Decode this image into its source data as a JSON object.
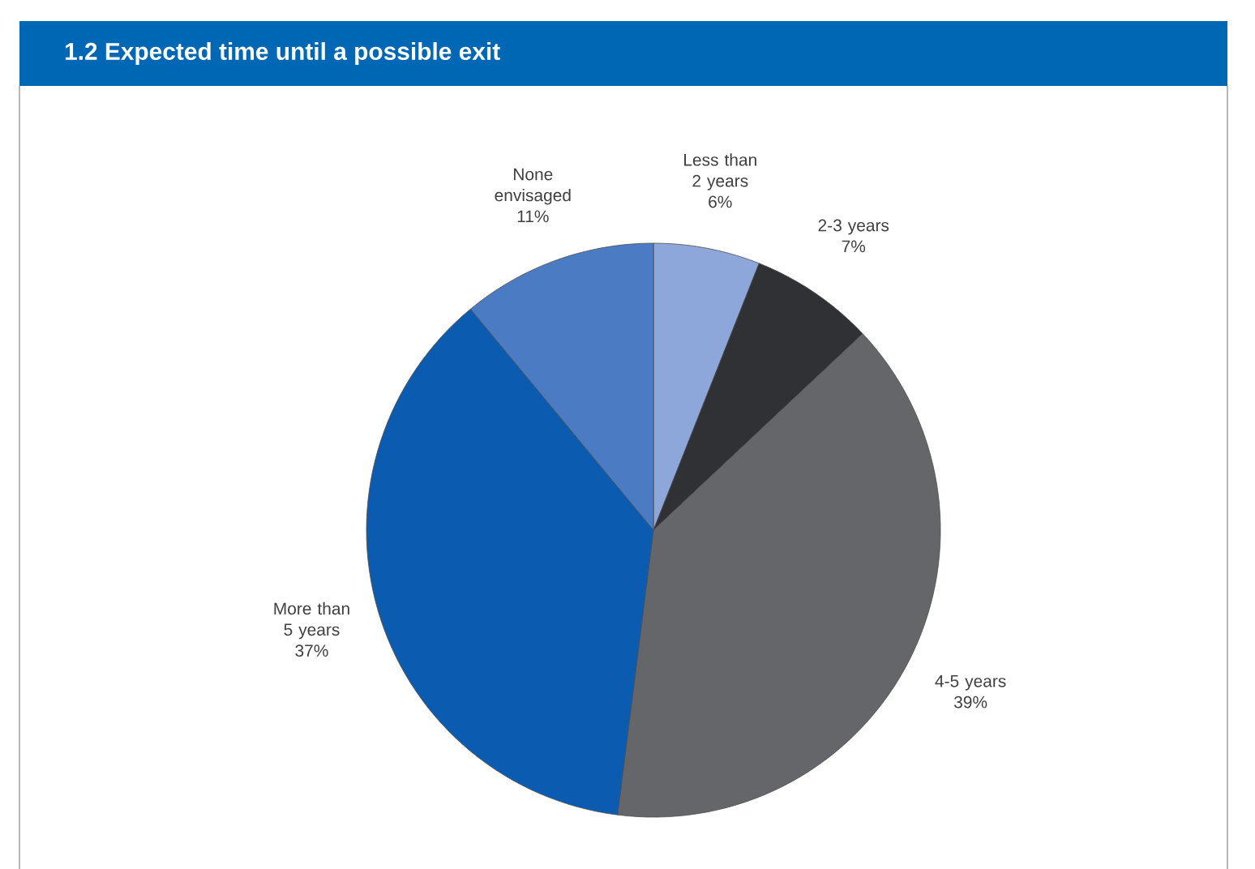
{
  "chart_data": {
    "type": "pie",
    "title": "1.2  Expected time until a possible exit",
    "categories": [
      "Less than 2 years",
      "2-3 years",
      "4-5 years",
      "More than 5 years",
      "None envisaged"
    ],
    "values": [
      6,
      7,
      39,
      37,
      11
    ],
    "value_labels": [
      "6%",
      "7%",
      "39%",
      "37%",
      "11%"
    ],
    "colors": [
      "#8ea7da",
      "#2f3134",
      "#646669",
      "#0b5cb0",
      "#4b7bc3"
    ]
  }
}
